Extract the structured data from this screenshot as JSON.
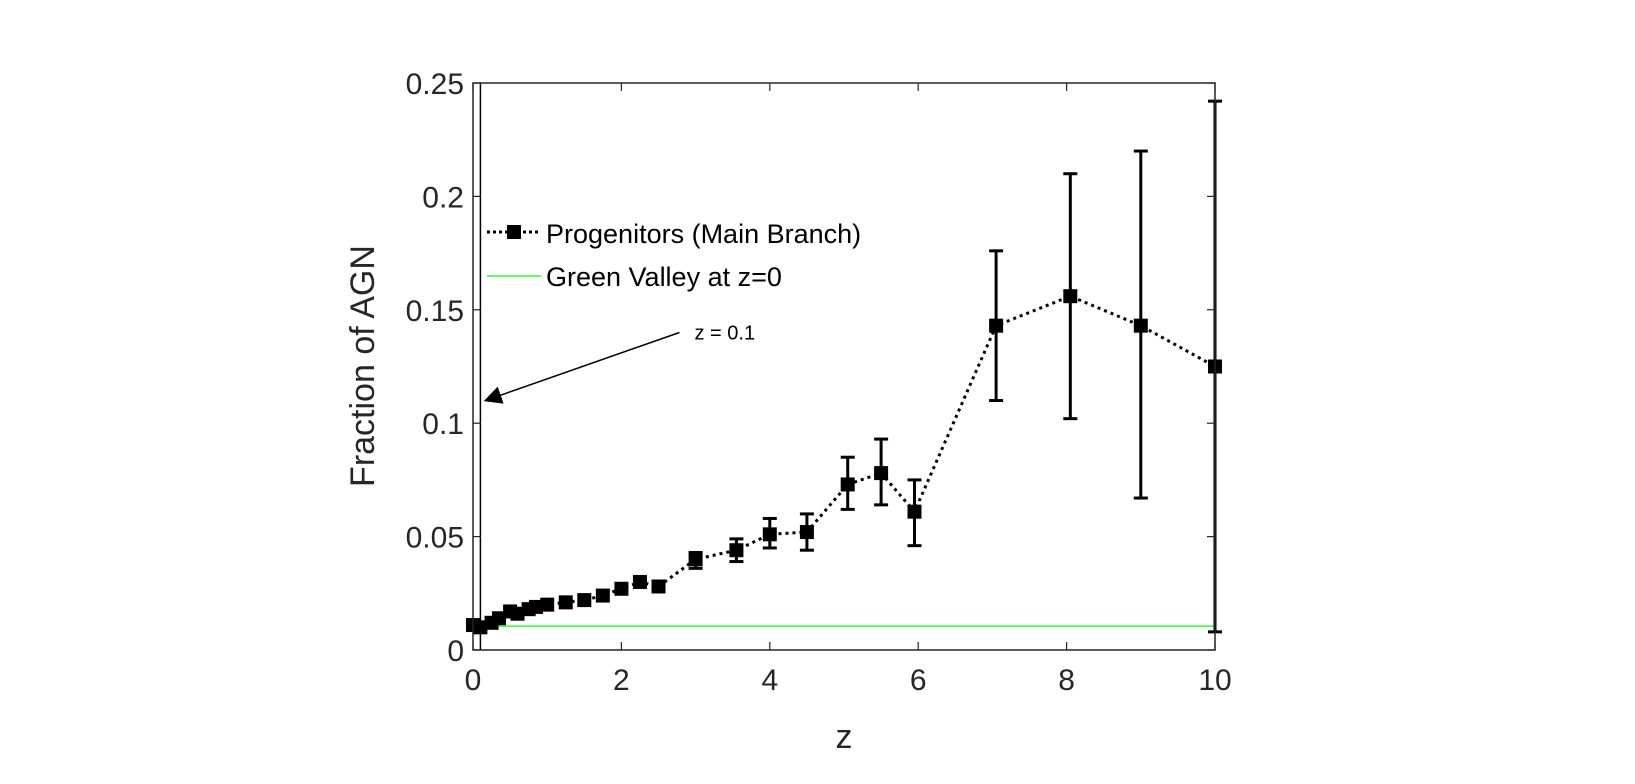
{
  "chart_data": {
    "type": "line",
    "xlabel": "z",
    "ylabel": "Fraction of AGN",
    "xlim": [
      0,
      10
    ],
    "ylim": [
      0,
      0.25
    ],
    "xticks": [
      "0",
      "2",
      "4",
      "6",
      "8",
      "10"
    ],
    "yticks": [
      "0",
      "0.05",
      "0.1",
      "0.15",
      "0.2",
      "0.25"
    ],
    "grid": false,
    "legend_position": "upper-left",
    "series": [
      {
        "name": "Progenitors (Main Branch)",
        "style": "dotted line with square markers and error bars",
        "color": "#000000",
        "x": [
          0.0,
          0.1,
          0.25,
          0.35,
          0.5,
          0.6,
          0.75,
          0.85,
          1.0,
          1.25,
          1.5,
          1.75,
          2.0,
          2.25,
          2.5,
          3.0,
          3.55,
          4.0,
          4.5,
          5.05,
          5.5,
          5.95,
          7.05,
          8.05,
          9.0,
          10.0
        ],
        "y": [
          0.011,
          0.01,
          0.012,
          0.014,
          0.017,
          0.016,
          0.018,
          0.019,
          0.02,
          0.021,
          0.022,
          0.024,
          0.027,
          0.03,
          0.028,
          0.04,
          0.044,
          0.051,
          0.052,
          0.073,
          0.078,
          0.061,
          0.143,
          0.156,
          0.143,
          0.125
        ],
        "y_low": [
          0.011,
          0.01,
          0.012,
          0.014,
          0.017,
          0.016,
          0.018,
          0.019,
          0.02,
          0.021,
          0.022,
          0.024,
          0.027,
          0.03,
          0.028,
          0.036,
          0.039,
          0.045,
          0.044,
          0.062,
          0.064,
          0.046,
          0.11,
          0.102,
          0.067,
          0.008
        ],
        "y_high": [
          0.011,
          0.01,
          0.012,
          0.014,
          0.017,
          0.016,
          0.018,
          0.019,
          0.02,
          0.021,
          0.022,
          0.024,
          0.027,
          0.03,
          0.028,
          0.043,
          0.049,
          0.058,
          0.06,
          0.085,
          0.093,
          0.075,
          0.176,
          0.21,
          0.22,
          0.242
        ]
      },
      {
        "name": "Green Valley at z=0",
        "style": "solid line",
        "color": "#33ff33",
        "x": [
          0,
          10
        ],
        "y": [
          0.0105,
          0.0105
        ]
      }
    ],
    "annotations": [
      {
        "text": "z = 0.1",
        "arrow_to": [
          0.1,
          0.11
        ],
        "text_at": [
          2.85,
          0.14
        ]
      }
    ],
    "vertical_line": {
      "x": 0.1,
      "color": "#000000"
    }
  }
}
